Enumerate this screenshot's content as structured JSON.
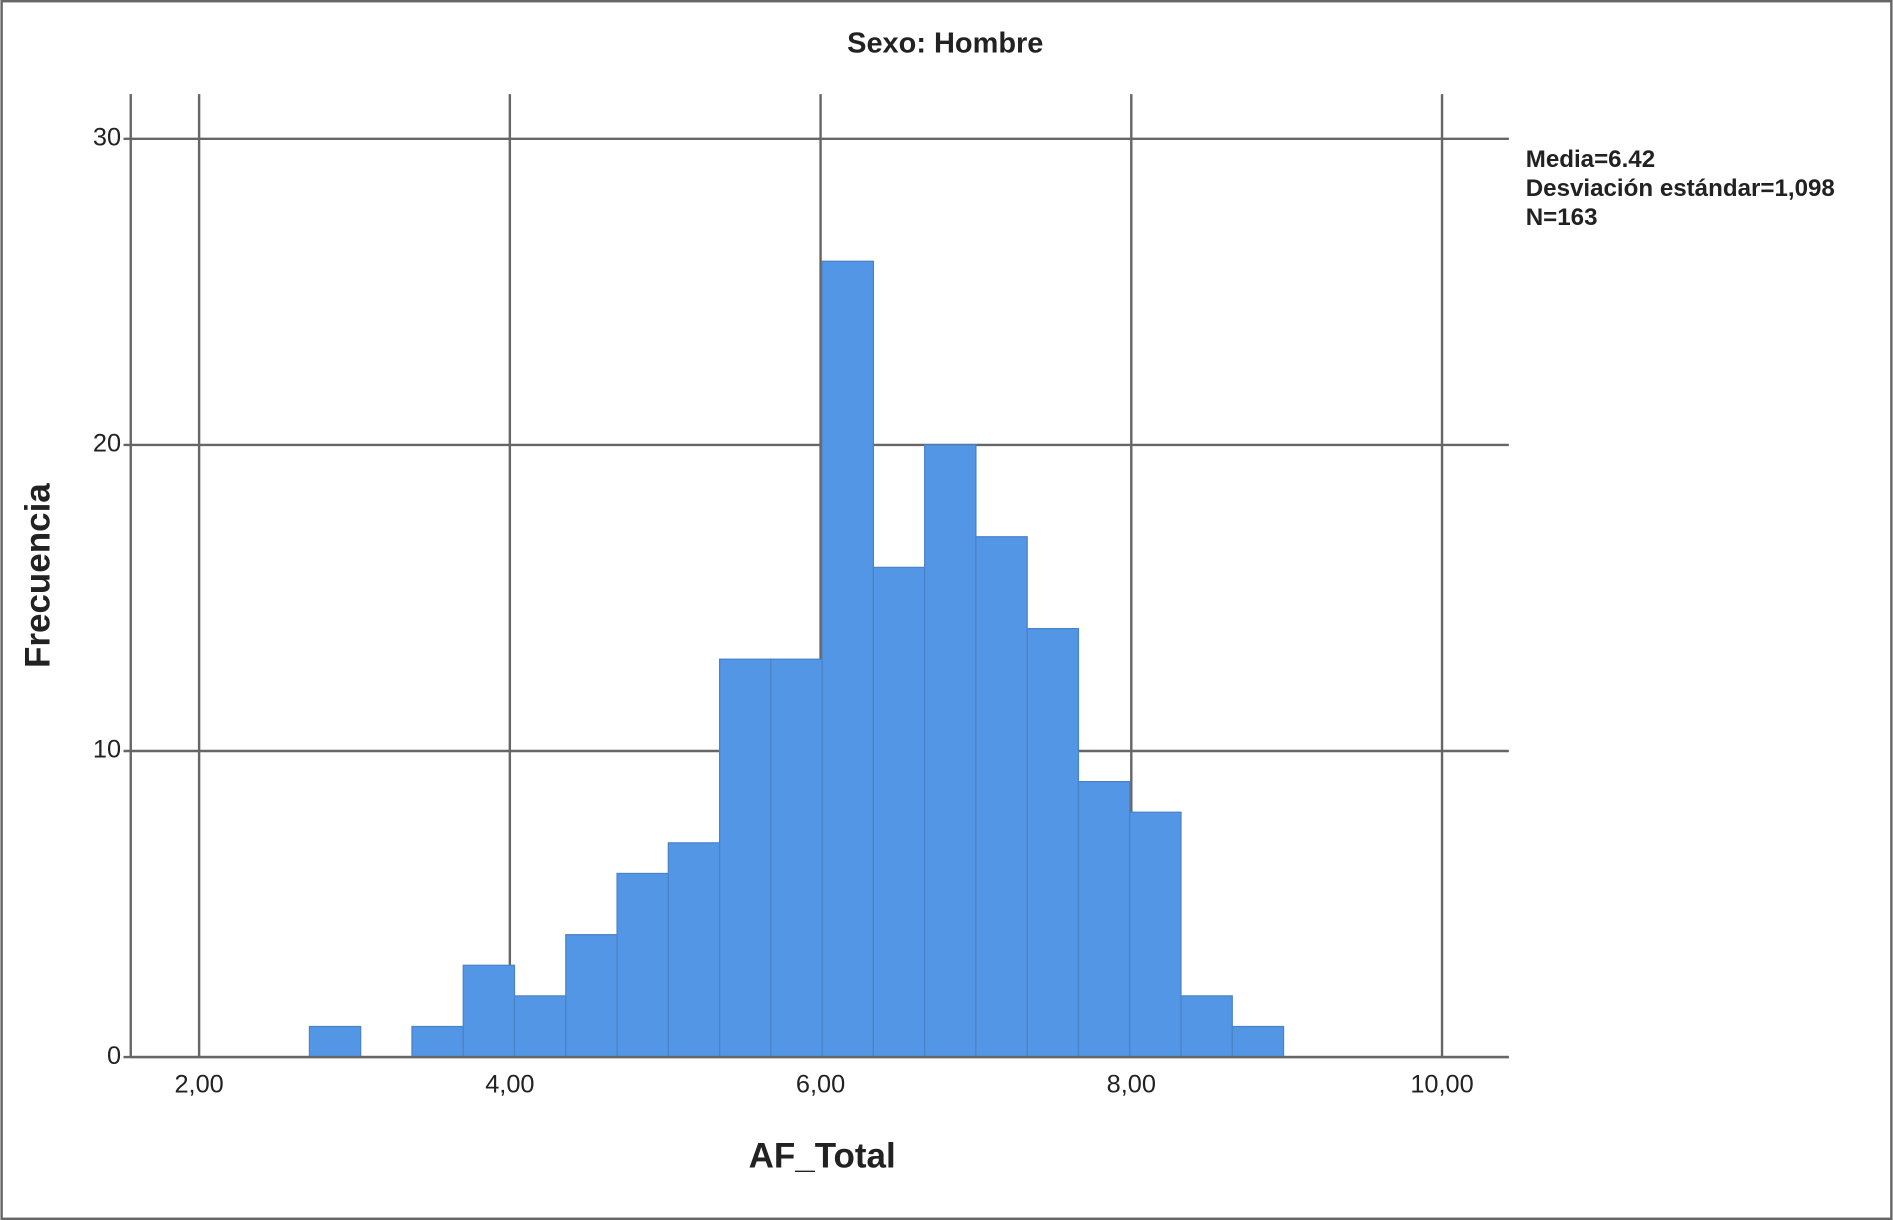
{
  "chart_data": {
    "type": "histogram",
    "title": "Sexo: Hombre",
    "x_label": "AF_Total",
    "y_label": "Frecuencia",
    "annotations": [
      "Media=6.42",
      "Desviación estándar=1,098",
      "N=163"
    ],
    "bins": [
      2.71,
      3.04,
      3.37,
      3.7,
      4.03,
      4.36,
      4.69,
      5.02,
      5.35,
      5.68,
      6.01,
      6.34,
      6.67,
      7.0,
      7.33,
      7.66,
      7.99,
      8.32,
      8.65,
      8.98
    ],
    "values": [
      1,
      0,
      1,
      3,
      2,
      4,
      6,
      7,
      13,
      13,
      26,
      16,
      20,
      17,
      14,
      9,
      8,
      2,
      1
    ],
    "color": "#5296e5",
    "xlim": [
      1.56,
      10.43
    ],
    "ylim": [
      0,
      31.46
    ],
    "xticks": [
      {
        "value": 2,
        "label": "2,00"
      },
      {
        "value": 4,
        "label": "4,00"
      },
      {
        "value": 6,
        "label": "6,00"
      },
      {
        "value": 8,
        "label": "8,00"
      },
      {
        "value": 10,
        "label": "10,00"
      }
    ],
    "yticks": [
      0,
      10,
      20,
      30
    ],
    "grid": true
  }
}
